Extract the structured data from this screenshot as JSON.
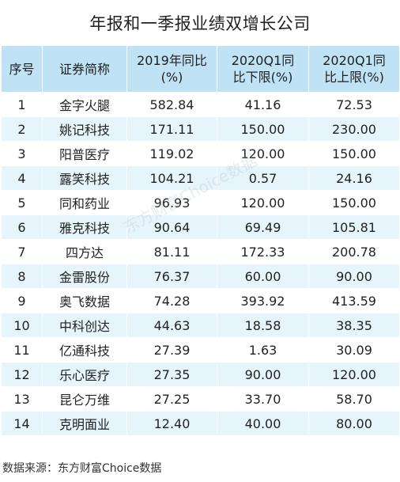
{
  "title": "年报和一季报业绩双增长公司",
  "table": {
    "headers": [
      "序号",
      "证券简称",
      "2019年同比(%)",
      "2020Q1同比下限(%)",
      "2020Q1同比上限(%)"
    ],
    "rows": [
      [
        "1",
        "金字火腿",
        "582.84",
        "41.16",
        "72.53"
      ],
      [
        "2",
        "姚记科技",
        "171.11",
        "150.00",
        "230.00"
      ],
      [
        "3",
        "阳普医疗",
        "119.02",
        "120.00",
        "150.00"
      ],
      [
        "4",
        "露笑科技",
        "104.21",
        "0.57",
        "24.16"
      ],
      [
        "5",
        "同和药业",
        "96.93",
        "120.00",
        "150.00"
      ],
      [
        "6",
        "雅克科技",
        "90.64",
        "69.49",
        "105.81"
      ],
      [
        "7",
        "四方达",
        "81.11",
        "172.33",
        "200.78"
      ],
      [
        "8",
        "金雷股份",
        "76.37",
        "60.00",
        "90.00"
      ],
      [
        "9",
        "奥飞数据",
        "74.28",
        "393.92",
        "413.59"
      ],
      [
        "10",
        "中科创达",
        "44.63",
        "18.58",
        "38.35"
      ],
      [
        "11",
        "亿通科技",
        "27.39",
        "1.63",
        "30.09"
      ],
      [
        "12",
        "乐心医疗",
        "27.35",
        "90.00",
        "120.00"
      ],
      [
        "13",
        "昆仑万维",
        "27.25",
        "33.70",
        "58.70"
      ],
      [
        "14",
        "克明面业",
        "12.40",
        "40.00",
        "80.00"
      ]
    ]
  },
  "watermark": "东方财富Choice数据",
  "footer": "数据来源：东方财富Choice数据"
}
